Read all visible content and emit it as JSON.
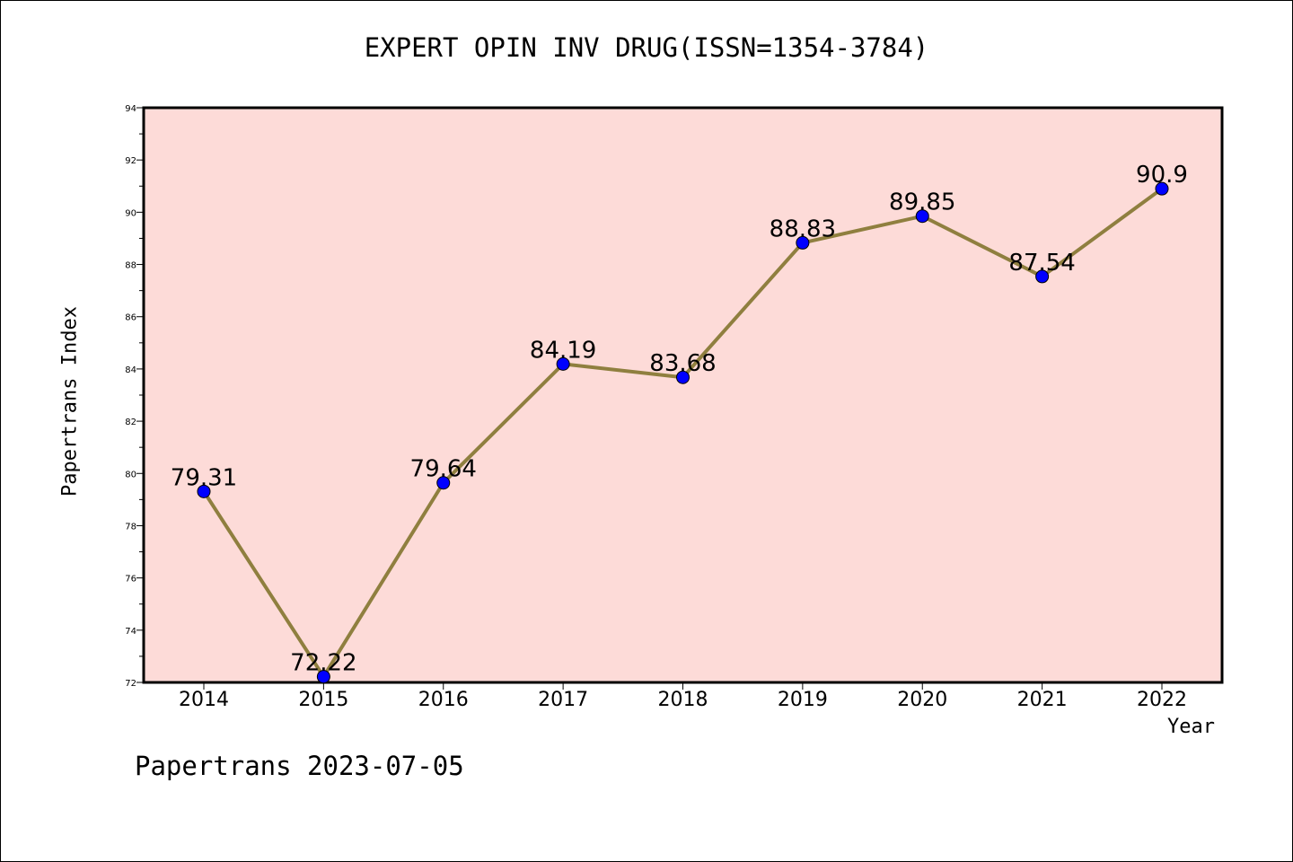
{
  "chart_data": {
    "type": "line",
    "title": "EXPERT OPIN INV DRUG(ISSN=1354-3784)",
    "xlabel": "Year",
    "ylabel": "Papertrans Index",
    "categories": [
      "2014",
      "2015",
      "2016",
      "2017",
      "2018",
      "2019",
      "2020",
      "2021",
      "2022"
    ],
    "series": [
      {
        "values": [
          79.31,
          72.22,
          79.64,
          84.19,
          83.68,
          88.83,
          89.85,
          87.54,
          90.9
        ],
        "data_labels": [
          "79.31",
          "72.22",
          "79.64",
          "84.19",
          "83.68",
          "88.83",
          "89.85",
          "87.54",
          "90.9"
        ],
        "line_color": "#8f7f3f",
        "marker_color": "#0000ff"
      }
    ],
    "ylim": [
      72,
      94
    ],
    "yticks": [
      "72",
      "74",
      "76",
      "78",
      "80",
      "82",
      "84",
      "86",
      "88",
      "90",
      "92",
      "94"
    ],
    "plot_background": "#fddbd8",
    "grid": false,
    "legend": "none"
  },
  "footer": "Papertrans 2023-07-05"
}
